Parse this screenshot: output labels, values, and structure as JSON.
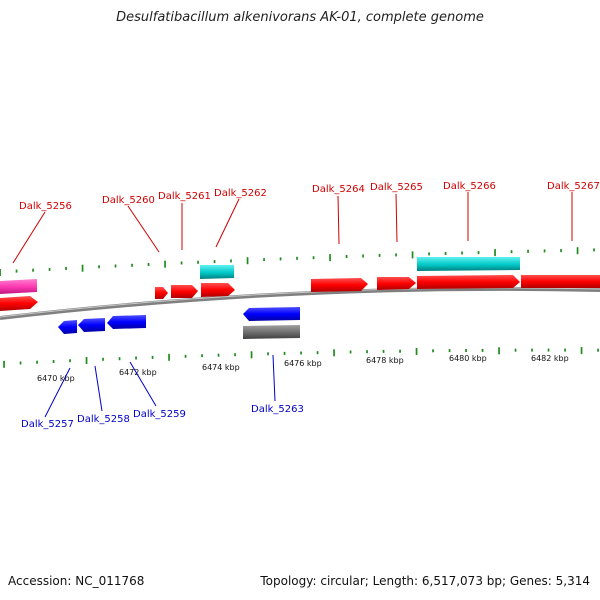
{
  "title": "Desulfatibacillum alkenivorans AK-01, complete genome",
  "footer": {
    "accession": "Accession: NC_011768",
    "summary": "Topology: circular; Length: 6,517,073 bp; Genes: 5,314"
  },
  "colors": {
    "forward_label": "#d00000",
    "reverse_label": "#0000c8",
    "cds_forward": "#ff0000",
    "cds_reverse": "#0000ff",
    "rna": "#00c8c8",
    "pink": "#ff3cb4",
    "gray": "#707070",
    "backbone": "#808080",
    "tick": "#1e8c1e"
  },
  "scale": {
    "tick_labels": [
      "6470 kbp",
      "6472 kbp",
      "6474 kbp",
      "6476 kbp",
      "6478 kbp",
      "6480 kbp",
      "6482 kbp"
    ]
  },
  "gene_labels_forward": [
    "Dalk_5256",
    "Dalk_5260",
    "Dalk_5261",
    "Dalk_5262",
    "Dalk_5264",
    "Dalk_5265",
    "Dalk_5266",
    "Dalk_5267"
  ],
  "gene_labels_reverse": [
    "Dalk_5257",
    "Dalk_5258",
    "Dalk_5259",
    "Dalk_5263"
  ]
}
